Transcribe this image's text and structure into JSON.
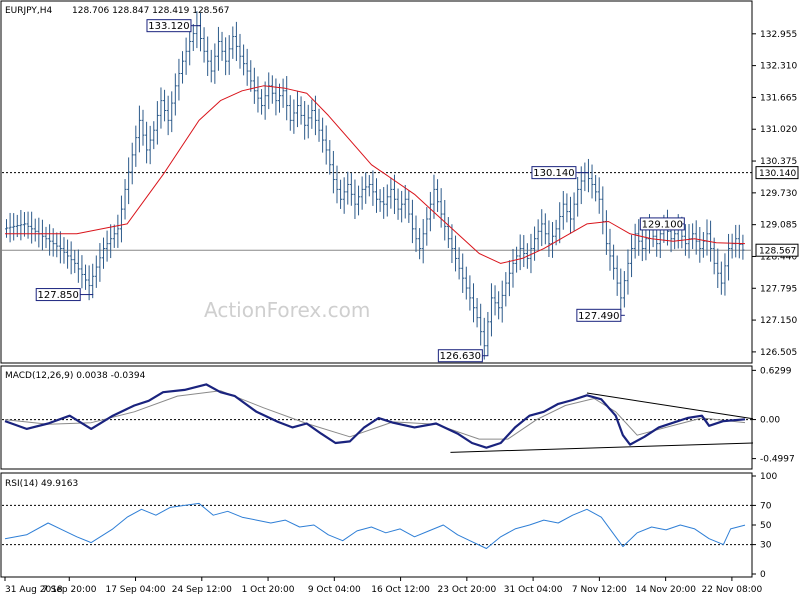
{
  "chart_data": [
    {
      "type": "candlestick",
      "title": "EURJPY,H4",
      "ohlc_header": "128.706 128.847 128.419 128.567",
      "watermark": "ActionForex.com",
      "ylim": [
        126.3,
        133.6
      ],
      "y_ticks": [
        "132.955",
        "132.310",
        "131.665",
        "131.020",
        "130.375",
        "129.730",
        "129.085",
        "128.440",
        "127.795",
        "127.150",
        "126.505"
      ],
      "last_price_label": "128.567",
      "last_price": 128.567,
      "resistance_label": "130.140",
      "resistance_level": 130.14,
      "price_path": [
        [
          0,
          129.0
        ],
        [
          3,
          129.1
        ],
        [
          6,
          128.8
        ],
        [
          8,
          128.6
        ],
        [
          10,
          128.3
        ],
        [
          12,
          127.85
        ],
        [
          14,
          128.6
        ],
        [
          16,
          129.0
        ],
        [
          17,
          129.8
        ],
        [
          18,
          130.5
        ],
        [
          19,
          131.2
        ],
        [
          20,
          130.6
        ],
        [
          21,
          131.0
        ],
        [
          22,
          131.6
        ],
        [
          23,
          131.2
        ],
        [
          24,
          131.9
        ],
        [
          25,
          132.4
        ],
        [
          26,
          132.8
        ],
        [
          27,
          133.12
        ],
        [
          28,
          132.6
        ],
        [
          29,
          132.2
        ],
        [
          30,
          132.8
        ],
        [
          31,
          132.4
        ],
        [
          32,
          132.9
        ],
        [
          33,
          132.5
        ],
        [
          34,
          132.2
        ],
        [
          35,
          131.8
        ],
        [
          36,
          131.5
        ],
        [
          37,
          131.9
        ],
        [
          38,
          131.6
        ],
        [
          39,
          131.8
        ],
        [
          40,
          131.2
        ],
        [
          41,
          131.5
        ],
        [
          42,
          131.1
        ],
        [
          43,
          131.4
        ],
        [
          44,
          131.0
        ],
        [
          45,
          130.6
        ],
        [
          46,
          130.0
        ],
        [
          47,
          129.6
        ],
        [
          48,
          129.9
        ],
        [
          49,
          129.5
        ],
        [
          50,
          129.8
        ],
        [
          51,
          129.9
        ],
        [
          52,
          129.6
        ],
        [
          53,
          129.5
        ],
        [
          54,
          129.8
        ],
        [
          55,
          129.4
        ],
        [
          56,
          129.6
        ],
        [
          57,
          129.0
        ],
        [
          58,
          128.6
        ],
        [
          59,
          129.2
        ],
        [
          60,
          129.8
        ],
        [
          61,
          129.3
        ],
        [
          62,
          128.8
        ],
        [
          63,
          128.4
        ],
        [
          64,
          128.0
        ],
        [
          65,
          127.6
        ],
        [
          66,
          127.2
        ],
        [
          67,
          126.63
        ],
        [
          68,
          127.6
        ],
        [
          69,
          127.4
        ],
        [
          70,
          127.9
        ],
        [
          71,
          128.3
        ],
        [
          72,
          128.6
        ],
        [
          73,
          128.4
        ],
        [
          74,
          128.8
        ],
        [
          75,
          129.1
        ],
        [
          76,
          128.7
        ],
        [
          77,
          129.0
        ],
        [
          78,
          129.5
        ],
        [
          79,
          129.2
        ],
        [
          80,
          129.8
        ],
        [
          81,
          130.14
        ],
        [
          82,
          129.9
        ],
        [
          83,
          129.6
        ],
        [
          84,
          128.7
        ],
        [
          85,
          128.2
        ],
        [
          86,
          127.6
        ],
        [
          87,
          128.3
        ],
        [
          88,
          128.9
        ],
        [
          89,
          128.6
        ],
        [
          90,
          129.0
        ],
        [
          91,
          128.7
        ],
        [
          92,
          129.1
        ],
        [
          93,
          128.8
        ],
        [
          94,
          129.0
        ],
        [
          95,
          128.7
        ],
        [
          96,
          128.9
        ],
        [
          97,
          128.6
        ],
        [
          98,
          128.9
        ],
        [
          99,
          128.3
        ],
        [
          100,
          127.9
        ],
        [
          101,
          128.6
        ],
        [
          102,
          128.8
        ],
        [
          103,
          128.57
        ]
      ],
      "moving_average": [
        [
          0,
          128.9
        ],
        [
          10,
          128.9
        ],
        [
          17,
          129.1
        ],
        [
          22,
          130.1
        ],
        [
          27,
          131.2
        ],
        [
          30,
          131.6
        ],
        [
          33,
          131.8
        ],
        [
          36,
          131.9
        ],
        [
          39,
          131.85
        ],
        [
          42,
          131.75
        ],
        [
          45,
          131.3
        ],
        [
          48,
          130.8
        ],
        [
          51,
          130.3
        ],
        [
          54,
          130.0
        ],
        [
          57,
          129.7
        ],
        [
          60,
          129.3
        ],
        [
          63,
          128.9
        ],
        [
          66,
          128.5
        ],
        [
          69,
          128.3
        ],
        [
          72,
          128.4
        ],
        [
          75,
          128.6
        ],
        [
          78,
          128.85
        ],
        [
          81,
          129.1
        ],
        [
          84,
          129.15
        ],
        [
          87,
          128.9
        ],
        [
          90,
          128.8
        ],
        [
          93,
          128.75
        ],
        [
          96,
          128.8
        ],
        [
          99,
          128.72
        ],
        [
          103,
          128.7
        ]
      ],
      "annotations": [
        {
          "label": "133.120",
          "x": 27,
          "y": 133.12
        },
        {
          "label": "127.850",
          "x": 12,
          "y": 127.85
        },
        {
          "label": "126.630",
          "x": 67,
          "y": 126.63
        },
        {
          "label": "130.140",
          "x": 81,
          "y": 130.14
        },
        {
          "label": "127.490",
          "x": 86,
          "y": 127.49
        },
        {
          "label": "129.100",
          "x": 94,
          "y": 129.1
        }
      ],
      "x_tick_labels": [
        "31 Aug 2018",
        "7 Sep 20:00",
        "17 Sep 04:00",
        "24 Sep 12:00",
        "1 Oct 20:00",
        "9 Oct 04:00",
        "16 Oct 12:00",
        "23 Oct 20:00",
        "31 Oct 04:00",
        "7 Nov 12:00",
        "14 Nov 20:00",
        "22 Nov 08:00"
      ],
      "colors": {
        "price": "#2c5a8a",
        "ma": "#d9141b",
        "macd": "#1a237e",
        "signal": "#8a8a8a",
        "rsi": "#2f7fd6"
      }
    },
    {
      "type": "line",
      "title": "MACD(12,26,9) 0.0038 -0.0394",
      "ylim": [
        -0.62,
        0.66
      ],
      "y_ticks": [
        "0.6299",
        "0.00",
        "-0.4997"
      ],
      "macd": [
        [
          0,
          -0.02
        ],
        [
          3,
          -0.12
        ],
        [
          6,
          -0.05
        ],
        [
          9,
          0.05
        ],
        [
          12,
          -0.12
        ],
        [
          15,
          0.05
        ],
        [
          18,
          0.18
        ],
        [
          20,
          0.24
        ],
        [
          22,
          0.35
        ],
        [
          25,
          0.38
        ],
        [
          28,
          0.45
        ],
        [
          30,
          0.35
        ],
        [
          32,
          0.3
        ],
        [
          35,
          0.1
        ],
        [
          38,
          -0.03
        ],
        [
          40,
          -0.1
        ],
        [
          42,
          -0.05
        ],
        [
          44,
          -0.18
        ],
        [
          46,
          -0.3
        ],
        [
          48,
          -0.28
        ],
        [
          50,
          -0.1
        ],
        [
          52,
          0.02
        ],
        [
          54,
          -0.04
        ],
        [
          57,
          -0.1
        ],
        [
          60,
          -0.05
        ],
        [
          63,
          -0.18
        ],
        [
          65,
          -0.3
        ],
        [
          67,
          -0.36
        ],
        [
          69,
          -0.3
        ],
        [
          71,
          -0.1
        ],
        [
          73,
          0.05
        ],
        [
          75,
          0.1
        ],
        [
          77,
          0.2
        ],
        [
          79,
          0.25
        ],
        [
          81,
          0.31
        ],
        [
          83,
          0.26
        ],
        [
          85,
          0.05
        ],
        [
          86,
          -0.2
        ],
        [
          87,
          -0.32
        ],
        [
          89,
          -0.22
        ],
        [
          91,
          -0.1
        ],
        [
          93,
          -0.04
        ],
        [
          95,
          0.02
        ],
        [
          97,
          0.05
        ],
        [
          98,
          -0.08
        ],
        [
          100,
          -0.02
        ],
        [
          103,
          0.0038
        ]
      ],
      "signal": [
        [
          0,
          0.0
        ],
        [
          6,
          -0.06
        ],
        [
          12,
          -0.04
        ],
        [
          18,
          0.1
        ],
        [
          24,
          0.3
        ],
        [
          30,
          0.37
        ],
        [
          36,
          0.15
        ],
        [
          42,
          -0.05
        ],
        [
          48,
          -0.22
        ],
        [
          54,
          -0.03
        ],
        [
          60,
          -0.06
        ],
        [
          66,
          -0.25
        ],
        [
          70,
          -0.25
        ],
        [
          74,
          0.0
        ],
        [
          78,
          0.18
        ],
        [
          82,
          0.27
        ],
        [
          85,
          0.1
        ],
        [
          88,
          -0.2
        ],
        [
          92,
          -0.1
        ],
        [
          97,
          0.02
        ],
        [
          103,
          -0.0394
        ]
      ],
      "trend_lines": [
        {
          "x1": 81,
          "y1": 0.34,
          "x2": 103,
          "y2": 0.01
        },
        {
          "x1": 62,
          "y1": -0.42,
          "x2": 103,
          "y2": -0.3
        }
      ]
    },
    {
      "type": "line",
      "title": "RSI(14) 49.9163",
      "ylim": [
        0,
        100
      ],
      "y_ticks": [
        "100",
        "70",
        "50",
        "30",
        "0"
      ],
      "dashed_levels": [
        70,
        30
      ],
      "rsi": [
        [
          0,
          36
        ],
        [
          3,
          40
        ],
        [
          6,
          52
        ],
        [
          8,
          45
        ],
        [
          10,
          38
        ],
        [
          12,
          32
        ],
        [
          15,
          46
        ],
        [
          17,
          58
        ],
        [
          19,
          66
        ],
        [
          21,
          60
        ],
        [
          23,
          68
        ],
        [
          25,
          70
        ],
        [
          27,
          72
        ],
        [
          29,
          60
        ],
        [
          31,
          64
        ],
        [
          33,
          58
        ],
        [
          35,
          55
        ],
        [
          37,
          52
        ],
        [
          39,
          55
        ],
        [
          41,
          48
        ],
        [
          43,
          50
        ],
        [
          45,
          40
        ],
        [
          47,
          34
        ],
        [
          49,
          44
        ],
        [
          51,
          48
        ],
        [
          53,
          42
        ],
        [
          55,
          46
        ],
        [
          57,
          38
        ],
        [
          59,
          44
        ],
        [
          61,
          50
        ],
        [
          63,
          40
        ],
        [
          65,
          33
        ],
        [
          67,
          26
        ],
        [
          69,
          38
        ],
        [
          71,
          46
        ],
        [
          73,
          50
        ],
        [
          75,
          55
        ],
        [
          77,
          52
        ],
        [
          79,
          60
        ],
        [
          81,
          66
        ],
        [
          83,
          58
        ],
        [
          85,
          38
        ],
        [
          86,
          28
        ],
        [
          88,
          42
        ],
        [
          90,
          48
        ],
        [
          92,
          45
        ],
        [
          94,
          50
        ],
        [
          96,
          46
        ],
        [
          98,
          36
        ],
        [
          100,
          30
        ],
        [
          101,
          46
        ],
        [
          103,
          49.9
        ]
      ]
    }
  ]
}
